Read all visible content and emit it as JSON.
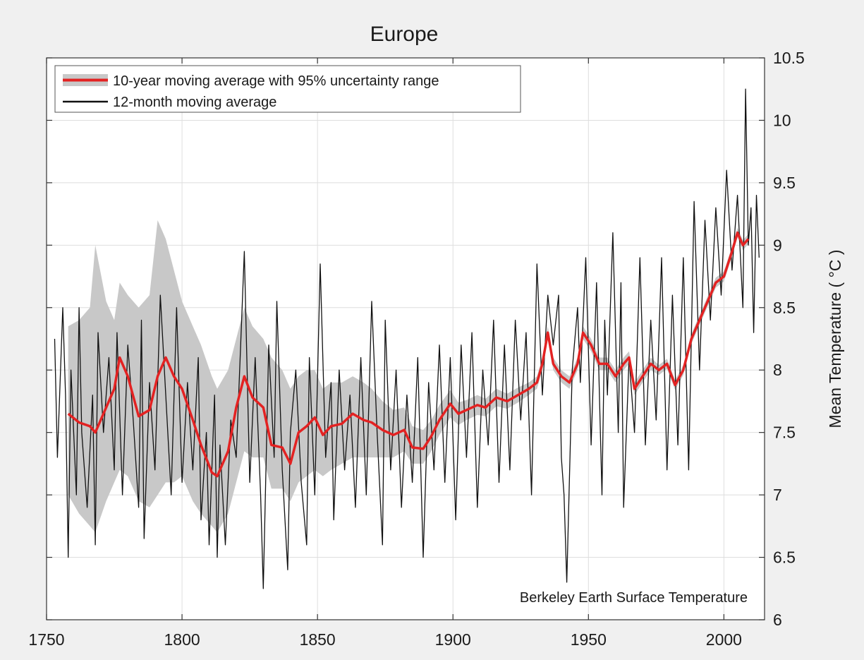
{
  "chart_data": {
    "type": "line",
    "title": "Europe",
    "xlabel": "",
    "ylabel": "Mean Temperature ( °C )",
    "xlim": [
      1750,
      2015
    ],
    "ylim": [
      6,
      10.5
    ],
    "x_ticks": [
      "1750",
      "1800",
      "1850",
      "1900",
      "1950",
      "2000"
    ],
    "y_ticks": [
      "6",
      "6.5",
      "7",
      "7.5",
      "8",
      "8.5",
      "9",
      "9.5",
      "10",
      "10.5"
    ],
    "grid": true,
    "legend_position": "top-left",
    "annotation": "Berkeley Earth Surface Temperature",
    "colors": {
      "moving_average": "#e32222",
      "uncertainty": "#c8c8c8",
      "monthly": "#111111",
      "background": "#f0f0f0",
      "plot_area": "#ffffff"
    },
    "series": [
      {
        "name": "10-year moving average with 95% uncertainty range",
        "x": [
          1758,
          1762,
          1766,
          1768,
          1772,
          1775,
          1777,
          1780,
          1784,
          1788,
          1791,
          1794,
          1797,
          1800,
          1804,
          1807,
          1811,
          1813,
          1817,
          1820,
          1823,
          1826,
          1830,
          1833,
          1837,
          1840,
          1843,
          1846,
          1849,
          1852,
          1855,
          1859,
          1863,
          1867,
          1870,
          1874,
          1878,
          1882,
          1885,
          1889,
          1892,
          1895,
          1899,
          1902,
          1905,
          1909,
          1912,
          1916,
          1920,
          1924,
          1928,
          1931,
          1933,
          1935,
          1937,
          1940,
          1943,
          1946,
          1948,
          1951,
          1954,
          1957,
          1960,
          1963,
          1965,
          1967,
          1970,
          1973,
          1976,
          1979,
          1982,
          1985,
          1988,
          1991,
          1994,
          1997,
          2000,
          2003,
          2005,
          2007,
          2009
        ],
        "values": [
          7.65,
          7.58,
          7.55,
          7.5,
          7.7,
          7.85,
          8.1,
          7.95,
          7.63,
          7.68,
          7.95,
          8.1,
          7.95,
          7.85,
          7.6,
          7.4,
          7.18,
          7.15,
          7.35,
          7.7,
          7.95,
          7.78,
          7.7,
          7.4,
          7.38,
          7.25,
          7.5,
          7.55,
          7.62,
          7.48,
          7.55,
          7.57,
          7.65,
          7.6,
          7.58,
          7.52,
          7.48,
          7.52,
          7.38,
          7.37,
          7.47,
          7.6,
          7.73,
          7.65,
          7.68,
          7.72,
          7.7,
          7.78,
          7.75,
          7.8,
          7.85,
          7.9,
          8.05,
          8.3,
          8.05,
          7.95,
          7.9,
          8.05,
          8.3,
          8.2,
          8.05,
          8.05,
          7.95,
          8.05,
          8.1,
          7.85,
          7.95,
          8.05,
          8.0,
          8.05,
          7.88,
          8.0,
          8.25,
          8.4,
          8.55,
          8.7,
          8.75,
          8.95,
          9.1,
          9.0,
          9.05
        ],
        "ci_lower": [
          7.0,
          6.85,
          6.75,
          6.7,
          6.95,
          7.1,
          7.2,
          7.15,
          6.95,
          6.9,
          7.0,
          7.1,
          7.1,
          7.15,
          6.95,
          6.85,
          6.75,
          6.7,
          6.85,
          7.1,
          7.35,
          7.3,
          7.3,
          7.05,
          7.05,
          6.95,
          7.1,
          7.15,
          7.2,
          7.15,
          7.2,
          7.25,
          7.3,
          7.3,
          7.3,
          7.3,
          7.3,
          7.35,
          7.25,
          7.25,
          7.35,
          7.48,
          7.62,
          7.56,
          7.6,
          7.64,
          7.63,
          7.71,
          7.69,
          7.74,
          7.8,
          7.85,
          8.0,
          8.25,
          8.0,
          7.9,
          7.85,
          8.0,
          8.25,
          8.15,
          8.0,
          8.0,
          7.9,
          8.0,
          8.05,
          7.8,
          7.9,
          8.0,
          7.96,
          8.01,
          7.84,
          7.96,
          8.21,
          8.36,
          8.51,
          8.66,
          8.71,
          8.91,
          9.06,
          8.96,
          9.01
        ],
        "ci_upper": [
          8.35,
          8.4,
          8.5,
          9.0,
          8.55,
          8.4,
          8.7,
          8.6,
          8.5,
          8.6,
          9.2,
          9.05,
          8.8,
          8.55,
          8.35,
          8.2,
          7.95,
          7.85,
          8.0,
          8.25,
          8.5,
          8.35,
          8.25,
          8.1,
          8.0,
          7.85,
          7.95,
          8.0,
          8.0,
          7.85,
          7.9,
          7.9,
          7.95,
          7.9,
          7.85,
          7.75,
          7.68,
          7.7,
          7.55,
          7.52,
          7.6,
          7.72,
          7.84,
          7.74,
          7.76,
          7.8,
          7.77,
          7.85,
          7.81,
          7.86,
          7.9,
          7.95,
          8.1,
          8.35,
          8.1,
          8.0,
          7.95,
          8.1,
          8.35,
          8.25,
          8.1,
          8.1,
          8.0,
          8.1,
          8.15,
          7.9,
          8.0,
          8.1,
          8.04,
          8.09,
          7.92,
          8.04,
          8.29,
          8.44,
          8.59,
          8.74,
          8.79,
          8.99,
          9.14,
          9.04,
          9.09
        ]
      },
      {
        "name": "12-month moving average",
        "x": [
          1753,
          1754,
          1756,
          1757,
          1758,
          1759,
          1761,
          1762,
          1763,
          1765,
          1767,
          1768,
          1769,
          1771,
          1773,
          1775,
          1776,
          1778,
          1780,
          1782,
          1784,
          1785,
          1786,
          1788,
          1790,
          1792,
          1794,
          1796,
          1798,
          1800,
          1802,
          1804,
          1806,
          1807,
          1809,
          1810,
          1812,
          1813,
          1814,
          1816,
          1818,
          1820,
          1822,
          1823,
          1825,
          1827,
          1829,
          1830,
          1832,
          1834,
          1835,
          1837,
          1839,
          1840,
          1842,
          1844,
          1846,
          1847,
          1849,
          1851,
          1853,
          1855,
          1856,
          1858,
          1860,
          1862,
          1864,
          1866,
          1868,
          1870,
          1872,
          1874,
          1875,
          1877,
          1879,
          1881,
          1883,
          1885,
          1887,
          1889,
          1891,
          1893,
          1895,
          1897,
          1899,
          1901,
          1903,
          1905,
          1907,
          1909,
          1911,
          1913,
          1915,
          1917,
          1919,
          1921,
          1923,
          1925,
          1927,
          1929,
          1931,
          1933,
          1935,
          1937,
          1939,
          1940,
          1941,
          1942,
          1944,
          1946,
          1947,
          1949,
          1951,
          1953,
          1955,
          1956,
          1957,
          1959,
          1961,
          1962,
          1963,
          1965,
          1967,
          1969,
          1971,
          1973,
          1975,
          1977,
          1979,
          1981,
          1983,
          1985,
          1987,
          1989,
          1991,
          1993,
          1995,
          1997,
          1999,
          2001,
          2003,
          2005,
          2007,
          2008,
          2009,
          2010,
          2011,
          2012,
          2013
        ],
        "values": [
          8.25,
          7.3,
          8.5,
          7.8,
          6.5,
          8.0,
          7.0,
          8.5,
          7.5,
          6.9,
          7.8,
          6.6,
          8.3,
          7.5,
          8.1,
          7.2,
          8.3,
          7.0,
          8.2,
          7.6,
          6.9,
          8.4,
          6.65,
          7.9,
          7.2,
          8.6,
          7.8,
          7.0,
          8.5,
          7.1,
          7.9,
          7.2,
          8.1,
          6.8,
          7.5,
          6.6,
          7.8,
          6.5,
          7.4,
          6.6,
          7.6,
          7.3,
          8.4,
          8.95,
          7.1,
          8.1,
          7.0,
          6.25,
          8.2,
          7.3,
          8.55,
          7.2,
          6.4,
          7.5,
          8.0,
          7.1,
          6.6,
          8.1,
          7.0,
          8.85,
          7.3,
          7.9,
          6.8,
          8.0,
          7.2,
          7.8,
          6.9,
          8.1,
          7.0,
          8.55,
          7.5,
          6.6,
          8.4,
          7.2,
          8.0,
          6.9,
          7.8,
          7.1,
          8.1,
          6.5,
          7.9,
          7.2,
          8.2,
          7.1,
          8.1,
          6.8,
          8.2,
          7.3,
          8.3,
          6.9,
          8.0,
          7.4,
          8.4,
          7.1,
          8.2,
          7.2,
          8.4,
          7.6,
          8.3,
          7.0,
          8.85,
          7.8,
          8.6,
          8.2,
          8.6,
          7.3,
          7.0,
          6.3,
          8.0,
          8.5,
          7.9,
          8.9,
          7.4,
          8.7,
          7.0,
          8.4,
          7.8,
          9.1,
          7.5,
          8.7,
          6.9,
          8.1,
          7.5,
          8.9,
          7.4,
          8.4,
          7.6,
          8.9,
          7.2,
          8.6,
          7.4,
          8.9,
          7.2,
          9.35,
          8.0,
          9.2,
          8.4,
          9.3,
          8.6,
          9.6,
          8.8,
          9.4,
          8.5,
          10.25,
          9.0,
          9.3,
          8.3,
          9.4,
          8.9
        ]
      }
    ]
  }
}
